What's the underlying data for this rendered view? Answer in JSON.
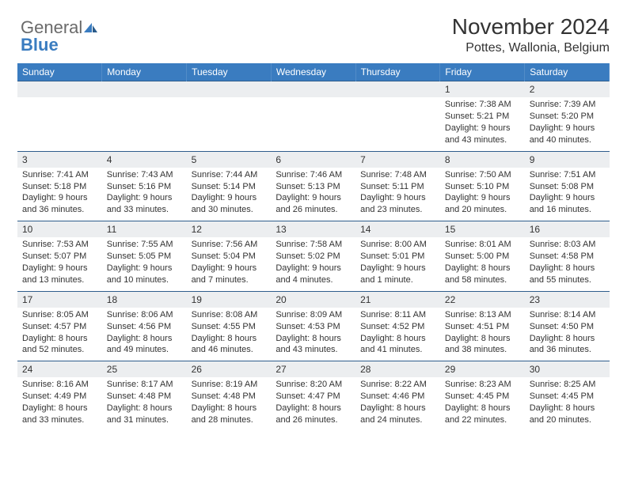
{
  "brand": {
    "name_part1": "General",
    "name_part2": "Blue",
    "icon_color": "#3a7cc0",
    "text_color_main": "#6a6a6a",
    "text_color_accent": "#3a7cc0"
  },
  "title": "November 2024",
  "location": "Pottes, Wallonia, Belgium",
  "colors": {
    "header_bg": "#3a7cc0",
    "header_text": "#ffffff",
    "row_border": "#2f5d8c",
    "daynum_bg": "#eceef0",
    "text": "#333333",
    "page_bg": "#ffffff"
  },
  "day_labels": [
    "Sunday",
    "Monday",
    "Tuesday",
    "Wednesday",
    "Thursday",
    "Friday",
    "Saturday"
  ],
  "weeks": [
    [
      {
        "n": "",
        "sunrise": "",
        "sunset": "",
        "daylight": ""
      },
      {
        "n": "",
        "sunrise": "",
        "sunset": "",
        "daylight": ""
      },
      {
        "n": "",
        "sunrise": "",
        "sunset": "",
        "daylight": ""
      },
      {
        "n": "",
        "sunrise": "",
        "sunset": "",
        "daylight": ""
      },
      {
        "n": "",
        "sunrise": "",
        "sunset": "",
        "daylight": ""
      },
      {
        "n": "1",
        "sunrise": "Sunrise: 7:38 AM",
        "sunset": "Sunset: 5:21 PM",
        "daylight": "Daylight: 9 hours and 43 minutes."
      },
      {
        "n": "2",
        "sunrise": "Sunrise: 7:39 AM",
        "sunset": "Sunset: 5:20 PM",
        "daylight": "Daylight: 9 hours and 40 minutes."
      }
    ],
    [
      {
        "n": "3",
        "sunrise": "Sunrise: 7:41 AM",
        "sunset": "Sunset: 5:18 PM",
        "daylight": "Daylight: 9 hours and 36 minutes."
      },
      {
        "n": "4",
        "sunrise": "Sunrise: 7:43 AM",
        "sunset": "Sunset: 5:16 PM",
        "daylight": "Daylight: 9 hours and 33 minutes."
      },
      {
        "n": "5",
        "sunrise": "Sunrise: 7:44 AM",
        "sunset": "Sunset: 5:14 PM",
        "daylight": "Daylight: 9 hours and 30 minutes."
      },
      {
        "n": "6",
        "sunrise": "Sunrise: 7:46 AM",
        "sunset": "Sunset: 5:13 PM",
        "daylight": "Daylight: 9 hours and 26 minutes."
      },
      {
        "n": "7",
        "sunrise": "Sunrise: 7:48 AM",
        "sunset": "Sunset: 5:11 PM",
        "daylight": "Daylight: 9 hours and 23 minutes."
      },
      {
        "n": "8",
        "sunrise": "Sunrise: 7:50 AM",
        "sunset": "Sunset: 5:10 PM",
        "daylight": "Daylight: 9 hours and 20 minutes."
      },
      {
        "n": "9",
        "sunrise": "Sunrise: 7:51 AM",
        "sunset": "Sunset: 5:08 PM",
        "daylight": "Daylight: 9 hours and 16 minutes."
      }
    ],
    [
      {
        "n": "10",
        "sunrise": "Sunrise: 7:53 AM",
        "sunset": "Sunset: 5:07 PM",
        "daylight": "Daylight: 9 hours and 13 minutes."
      },
      {
        "n": "11",
        "sunrise": "Sunrise: 7:55 AM",
        "sunset": "Sunset: 5:05 PM",
        "daylight": "Daylight: 9 hours and 10 minutes."
      },
      {
        "n": "12",
        "sunrise": "Sunrise: 7:56 AM",
        "sunset": "Sunset: 5:04 PM",
        "daylight": "Daylight: 9 hours and 7 minutes."
      },
      {
        "n": "13",
        "sunrise": "Sunrise: 7:58 AM",
        "sunset": "Sunset: 5:02 PM",
        "daylight": "Daylight: 9 hours and 4 minutes."
      },
      {
        "n": "14",
        "sunrise": "Sunrise: 8:00 AM",
        "sunset": "Sunset: 5:01 PM",
        "daylight": "Daylight: 9 hours and 1 minute."
      },
      {
        "n": "15",
        "sunrise": "Sunrise: 8:01 AM",
        "sunset": "Sunset: 5:00 PM",
        "daylight": "Daylight: 8 hours and 58 minutes."
      },
      {
        "n": "16",
        "sunrise": "Sunrise: 8:03 AM",
        "sunset": "Sunset: 4:58 PM",
        "daylight": "Daylight: 8 hours and 55 minutes."
      }
    ],
    [
      {
        "n": "17",
        "sunrise": "Sunrise: 8:05 AM",
        "sunset": "Sunset: 4:57 PM",
        "daylight": "Daylight: 8 hours and 52 minutes."
      },
      {
        "n": "18",
        "sunrise": "Sunrise: 8:06 AM",
        "sunset": "Sunset: 4:56 PM",
        "daylight": "Daylight: 8 hours and 49 minutes."
      },
      {
        "n": "19",
        "sunrise": "Sunrise: 8:08 AM",
        "sunset": "Sunset: 4:55 PM",
        "daylight": "Daylight: 8 hours and 46 minutes."
      },
      {
        "n": "20",
        "sunrise": "Sunrise: 8:09 AM",
        "sunset": "Sunset: 4:53 PM",
        "daylight": "Daylight: 8 hours and 43 minutes."
      },
      {
        "n": "21",
        "sunrise": "Sunrise: 8:11 AM",
        "sunset": "Sunset: 4:52 PM",
        "daylight": "Daylight: 8 hours and 41 minutes."
      },
      {
        "n": "22",
        "sunrise": "Sunrise: 8:13 AM",
        "sunset": "Sunset: 4:51 PM",
        "daylight": "Daylight: 8 hours and 38 minutes."
      },
      {
        "n": "23",
        "sunrise": "Sunrise: 8:14 AM",
        "sunset": "Sunset: 4:50 PM",
        "daylight": "Daylight: 8 hours and 36 minutes."
      }
    ],
    [
      {
        "n": "24",
        "sunrise": "Sunrise: 8:16 AM",
        "sunset": "Sunset: 4:49 PM",
        "daylight": "Daylight: 8 hours and 33 minutes."
      },
      {
        "n": "25",
        "sunrise": "Sunrise: 8:17 AM",
        "sunset": "Sunset: 4:48 PM",
        "daylight": "Daylight: 8 hours and 31 minutes."
      },
      {
        "n": "26",
        "sunrise": "Sunrise: 8:19 AM",
        "sunset": "Sunset: 4:48 PM",
        "daylight": "Daylight: 8 hours and 28 minutes."
      },
      {
        "n": "27",
        "sunrise": "Sunrise: 8:20 AM",
        "sunset": "Sunset: 4:47 PM",
        "daylight": "Daylight: 8 hours and 26 minutes."
      },
      {
        "n": "28",
        "sunrise": "Sunrise: 8:22 AM",
        "sunset": "Sunset: 4:46 PM",
        "daylight": "Daylight: 8 hours and 24 minutes."
      },
      {
        "n": "29",
        "sunrise": "Sunrise: 8:23 AM",
        "sunset": "Sunset: 4:45 PM",
        "daylight": "Daylight: 8 hours and 22 minutes."
      },
      {
        "n": "30",
        "sunrise": "Sunrise: 8:25 AM",
        "sunset": "Sunset: 4:45 PM",
        "daylight": "Daylight: 8 hours and 20 minutes."
      }
    ]
  ]
}
